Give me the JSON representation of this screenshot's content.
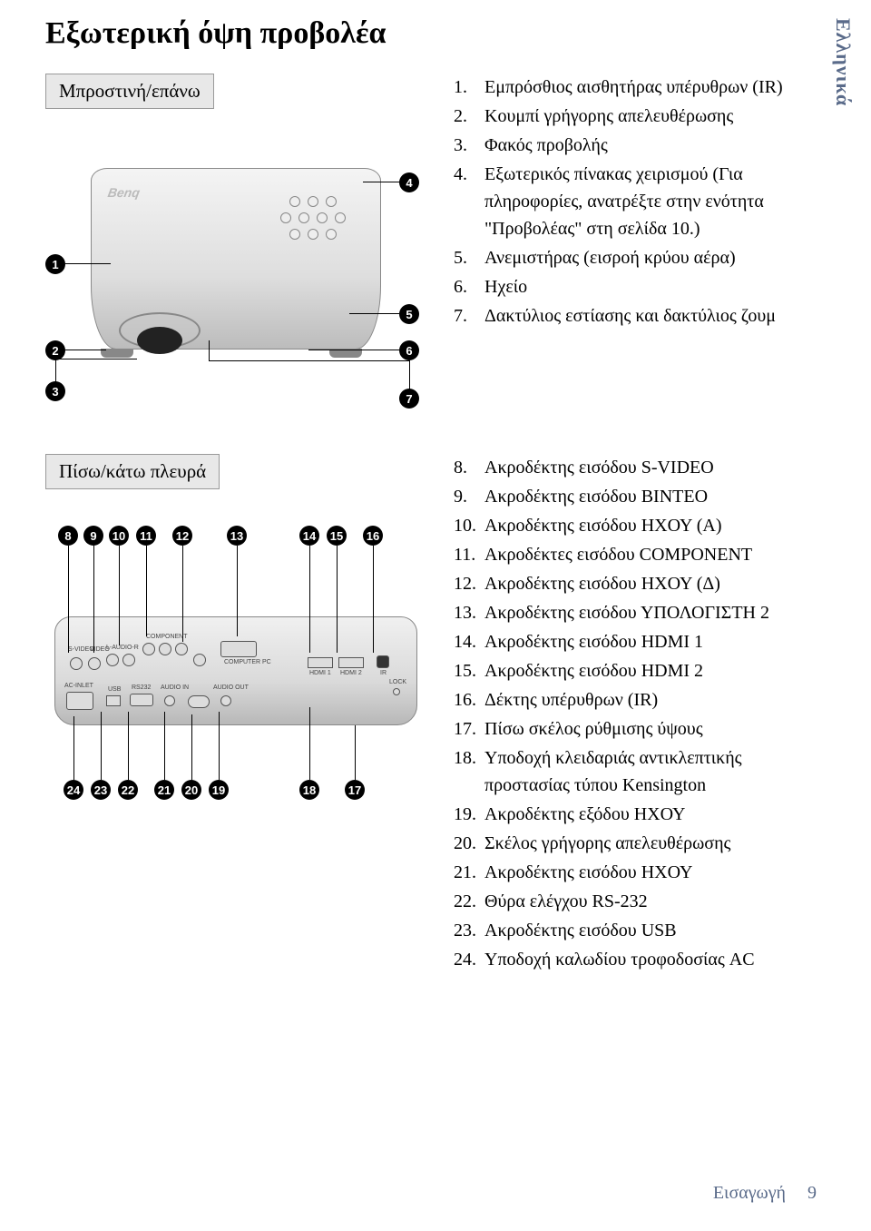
{
  "colors": {
    "accent": "#5a6b8a",
    "bg": "#ffffff",
    "text": "#000000",
    "label_bg": "#e8e8e8"
  },
  "title": "Εξωτερική όψη προβολέα",
  "side_tab": "Ελληνικά",
  "section_top": {
    "label": "Μπροστινή/επάνω",
    "items": [
      "Εμπρόσθιος αισθητήρας υπέρυθρων (IR)",
      "Κουμπί γρήγορης απελευθέρωσης",
      "Φακός προβολής",
      "Εξωτερικός πίνακας χειρισμού (Για πληροφορίες, ανατρέξτε στην ενότητα \"Προβολέας\" στη σελίδα 10.)",
      "Ανεμιστήρας (εισροή κρύου αέρα)",
      "Ηχείο",
      "Δακτύλιος εστίασης και δακτύλιος ζουμ"
    ]
  },
  "section_bottom": {
    "label": "Πίσω/κάτω πλευρά",
    "items_start": 8,
    "items": [
      "Ακροδέκτης εισόδου S-VIDEO",
      "Ακροδέκτης εισόδου ΒΙΝΤΕΟ",
      "Ακροδέκτης εισόδου ΗΧΟΥ (Α)",
      "Ακροδέκτες εισόδου COMPONENT",
      "Ακροδέκτης εισόδου ΗΧΟΥ (Δ)",
      "Ακροδέκτης εισόδου ΥΠΟΛΟΓΙΣΤΗ 2",
      "Ακροδέκτης εισόδου HDMI 1",
      "Ακροδέκτης εισόδου HDMI 2",
      "Δέκτης υπέρυθρων (IR)",
      "Πίσω σκέλος ρύθμισης ύψους",
      "Υποδοχή κλειδαριάς αντικλεπτικής προστασίας τύπου Kensington",
      "Ακροδέκτης εξόδου ΗΧΟΥ",
      "Σκέλος γρήγορης απελευθέρωσης",
      "Ακροδέκτης εισόδου ΗΧΟΥ",
      "Θύρα ελέγχου RS-232",
      "Ακροδέκτης εισόδου USB",
      "Υποδοχή καλωδίου τροφοδοσίας AC"
    ]
  },
  "port_labels": {
    "component": "COMPONENT",
    "svideo": "S-VIDEO",
    "video": "VIDEO",
    "audio_lr": "L-AUDIO-R",
    "computer": "COMPUTER PC",
    "hdmi1": "HDMI 1",
    "hdmi2": "HDMI 2",
    "ir": "IR",
    "lock": "LOCK",
    "ac": "AC-INLET",
    "usb": "USB",
    "rs232": "RS232",
    "audio_in": "AUDIO IN",
    "audio_out": "AUDIO OUT"
  },
  "logo": "Benq",
  "footer": {
    "section": "Εισαγωγή",
    "page": "9"
  }
}
